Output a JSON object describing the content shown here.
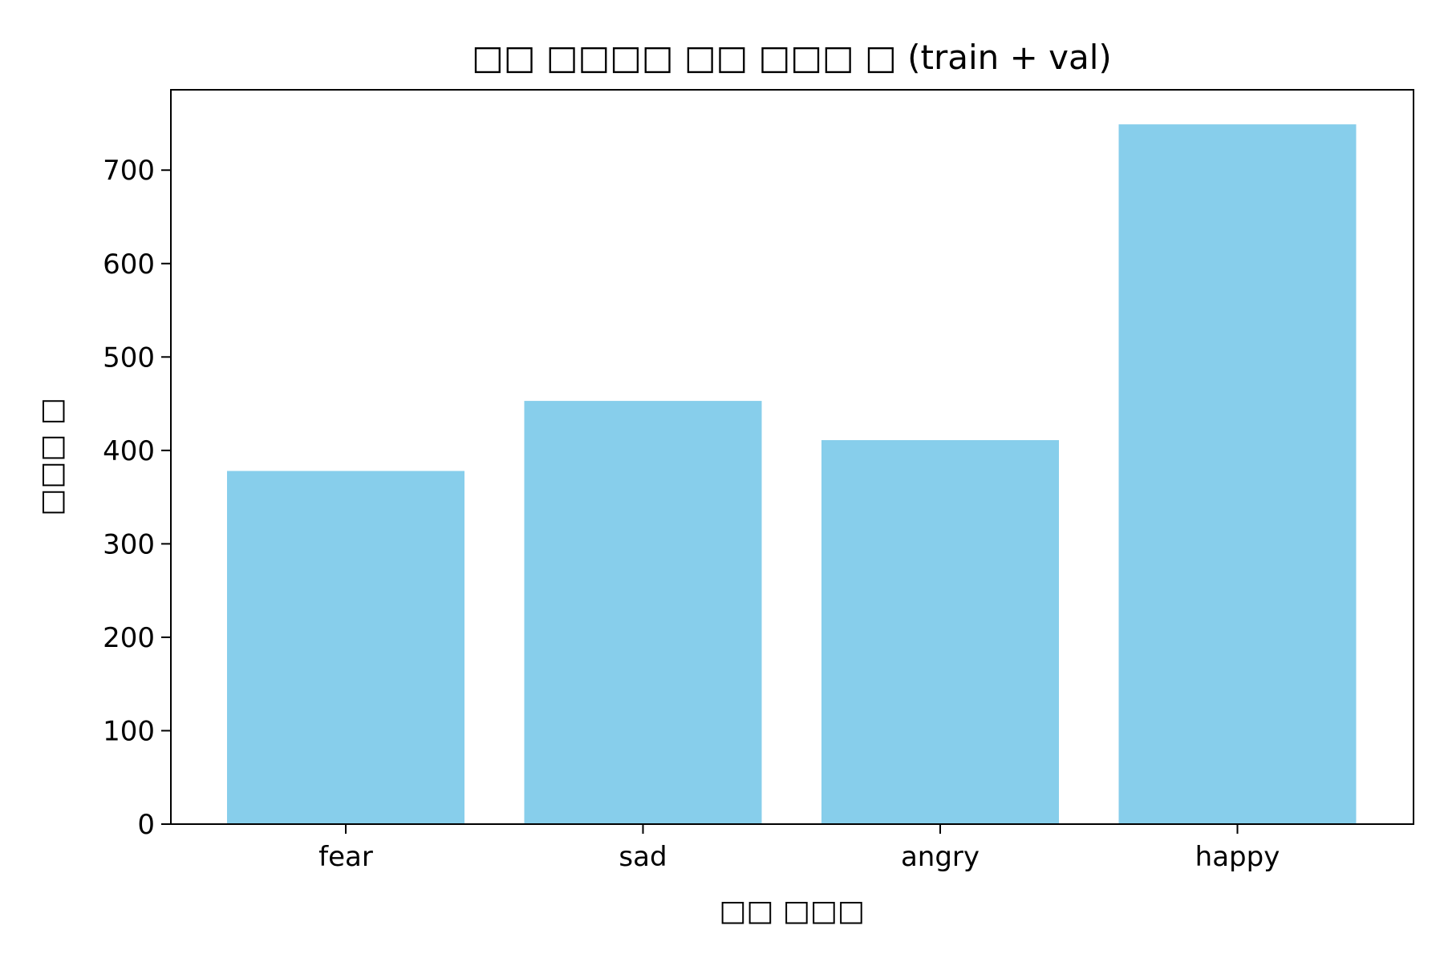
{
  "chart_data": {
    "type": "bar",
    "title": "□□ □□□□ □□ □□□ □ (train + val)",
    "xlabel": "□□ □□□",
    "ylabel": "□□□ □",
    "categories": [
      "fear",
      "sad",
      "angry",
      "happy"
    ],
    "values": [
      378,
      453,
      411,
      749
    ],
    "ylim": [
      0,
      786
    ],
    "yticks": [
      0,
      100,
      200,
      300,
      400,
      500,
      600,
      700
    ],
    "bar_color": "#87CEEB",
    "grid": false,
    "legend": "none"
  }
}
